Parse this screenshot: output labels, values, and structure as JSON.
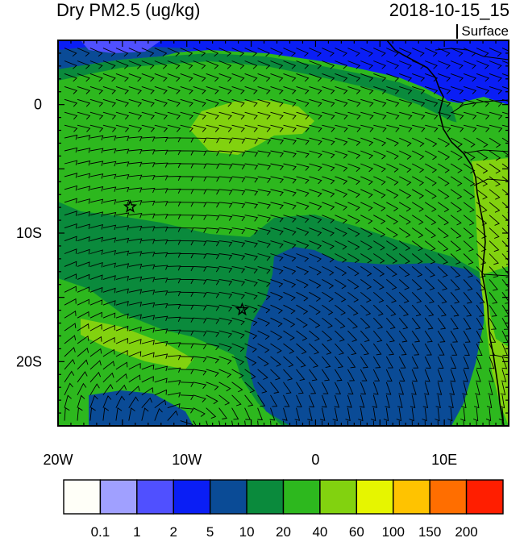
{
  "header": {
    "title": "Dry PM2.5 (ug/kg)",
    "datetime": "2018-10-15_15",
    "level": "Surface"
  },
  "map": {
    "lon_range": [
      -20,
      15
    ],
    "lat_range": [
      -25,
      5
    ],
    "x_ticks": [
      {
        "lon": -20,
        "label": "20W"
      },
      {
        "lon": -10,
        "label": "10W"
      },
      {
        "lon": 0,
        "label": "0"
      },
      {
        "lon": 10,
        "label": "10E"
      }
    ],
    "y_ticks": [
      {
        "lat": 0,
        "label": "0"
      },
      {
        "lat": -10,
        "label": "10S"
      },
      {
        "lat": -20,
        "label": "20S"
      }
    ],
    "stations": [
      {
        "lon": -14.4,
        "lat": -7.95
      },
      {
        "lon": -5.7,
        "lat": -15.95
      }
    ]
  },
  "colorbar": {
    "colors": [
      "#fffff8",
      "#a0a0ff",
      "#5050ff",
      "#0a1ef5",
      "#0a4b96",
      "#0a8a3c",
      "#2db81e",
      "#82d20f",
      "#e6f500",
      "#ffc300",
      "#ff6e00",
      "#ff1e00"
    ],
    "labels": [
      "0.1",
      "1",
      "2",
      "5",
      "10",
      "20",
      "40",
      "60",
      "100",
      "150",
      "200"
    ]
  }
}
